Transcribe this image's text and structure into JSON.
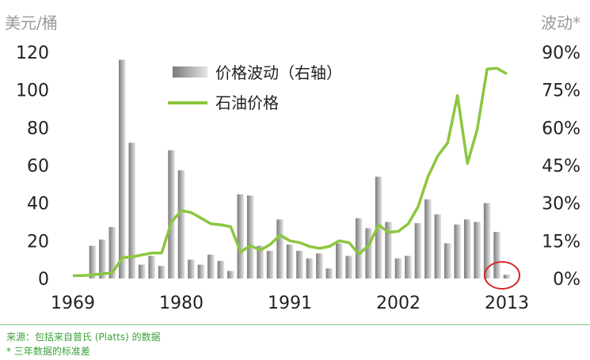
{
  "chart_data": {
    "type": "bar+line",
    "ylabel_left": "美元/桶",
    "ylabel_right": "波动*",
    "yticks_left": [
      "0",
      "20",
      "40",
      "60",
      "80",
      "100",
      "120"
    ],
    "yticks_right": [
      "0%",
      "15%",
      "30%",
      "45%",
      "60%",
      "75%",
      "90%"
    ],
    "xticks": [
      "1969",
      "1980",
      "1991",
      "2002",
      "2013"
    ],
    "ylim_left": [
      0,
      120
    ],
    "ylim_right": [
      0,
      90
    ],
    "legend": [
      {
        "label": "价格波动（右轴）",
        "kind": "bar"
      },
      {
        "label": "石油价格",
        "kind": "line"
      }
    ],
    "colors": {
      "bar_dark": "#7a7a7a",
      "bar_light": "#e2e2e2",
      "line": "#8cc63f",
      "highlight": "#d42a2a"
    },
    "highlighted_year": 2013,
    "series": [
      {
        "axis": "right",
        "kind": "bar",
        "x": [
          1969,
          1970,
          1971,
          1972,
          1973,
          1974,
          1975,
          1976,
          1977,
          1978,
          1979,
          1980,
          1981,
          1982,
          1983,
          1984,
          1985,
          1986,
          1987,
          1988,
          1989,
          1990,
          1991,
          1992,
          1993,
          1994,
          1995,
          1996,
          1997,
          1998,
          1999,
          2000,
          2001,
          2002,
          2003,
          2004,
          2005,
          2006,
          2007,
          2008,
          2009,
          2010,
          2011,
          2012,
          2013
        ],
        "values": [
          0,
          0,
          13,
          15.5,
          20.5,
          87,
          54,
          5.5,
          9,
          5,
          51,
          43,
          7.5,
          5.5,
          9.5,
          7,
          3,
          33.5,
          33,
          13,
          11,
          23.5,
          13.5,
          11,
          8,
          10,
          4,
          14,
          9,
          24,
          20,
          40.5,
          22.5,
          8,
          9,
          22,
          31.5,
          25.5,
          14,
          21.5,
          23.5,
          22.5,
          30,
          18.5,
          1.5
        ]
      },
      {
        "axis": "left",
        "kind": "line",
        "x": [
          1969,
          1970,
          1971,
          1972,
          1973,
          1974,
          1975,
          1976,
          1977,
          1978,
          1979,
          1980,
          1981,
          1982,
          1983,
          1984,
          1985,
          1986,
          1987,
          1988,
          1989,
          1990,
          1991,
          1992,
          1993,
          1994,
          1995,
          1996,
          1997,
          1998,
          1999,
          2000,
          2001,
          2002,
          2003,
          2004,
          2005,
          2006,
          2007,
          2008,
          2009,
          2010,
          2011,
          2012,
          2013
        ],
        "values": [
          1.5,
          1.5,
          2,
          2.5,
          3,
          11,
          11.5,
          12.5,
          13.5,
          13.5,
          30,
          36,
          35,
          32,
          29,
          28.5,
          27.5,
          14,
          17.5,
          15,
          18,
          23,
          20,
          19,
          17,
          16,
          17,
          20,
          19,
          13,
          17.5,
          28.5,
          24.5,
          25,
          29,
          38,
          54,
          65,
          72,
          97,
          61,
          79,
          111,
          111.5,
          108.5
        ]
      }
    ]
  },
  "source_text": "来源：包括来自普氏 (Platts) 的数据",
  "footnote_text": "* 三年数据的标准差"
}
